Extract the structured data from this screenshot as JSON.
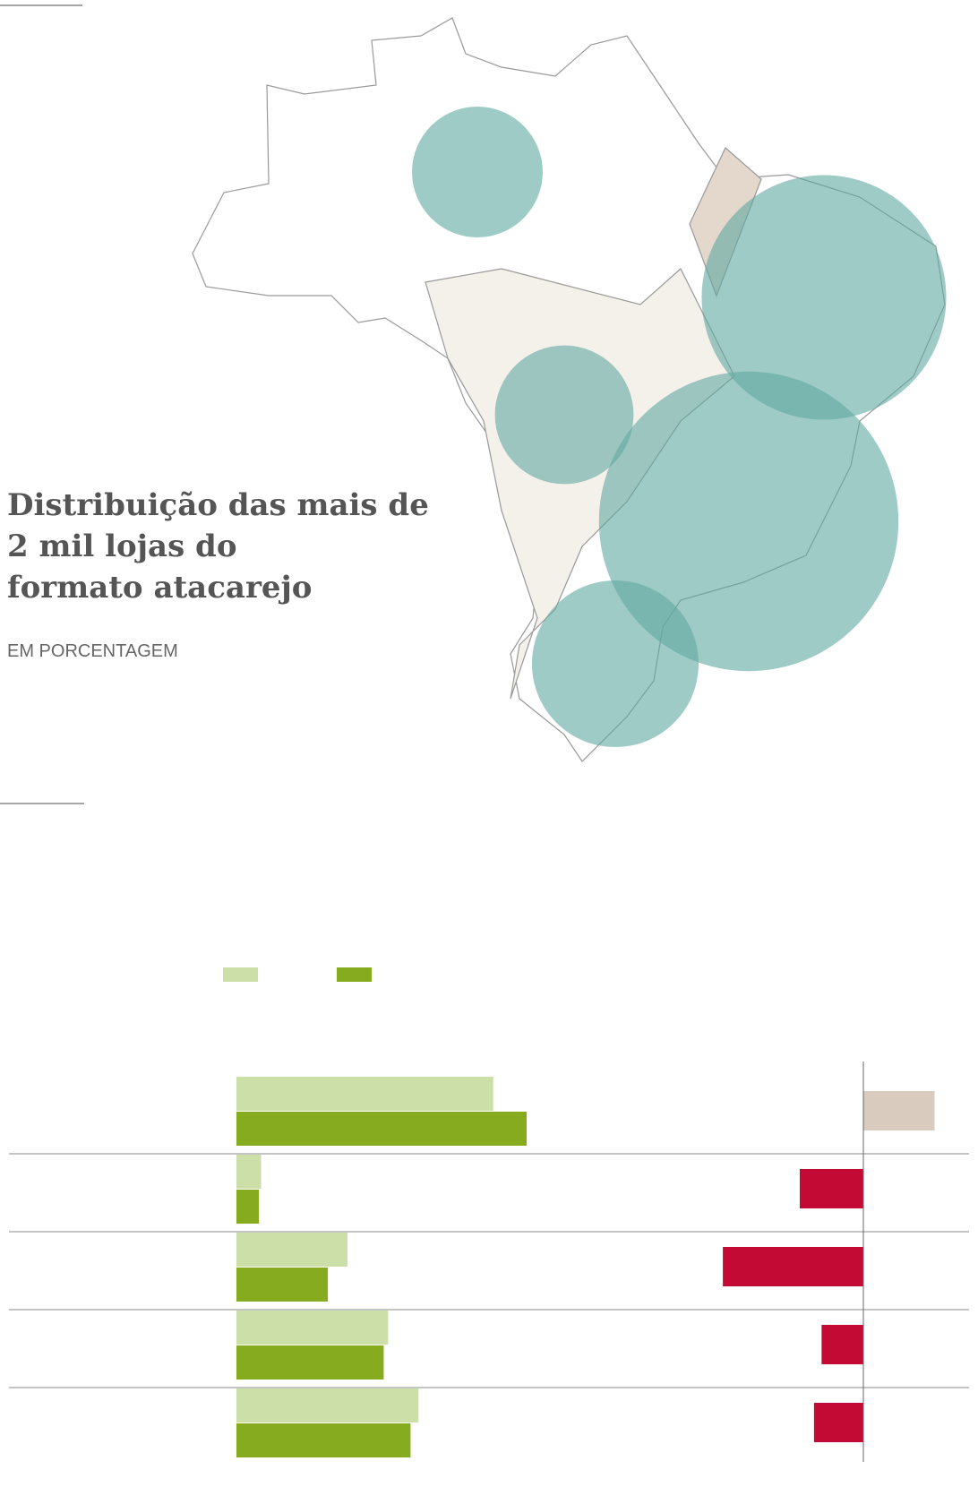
{
  "chart_data": [
    {
      "type": "bubble-map",
      "title": "Distribuição das mais de 2 mil lojas do formato atacarejo",
      "subtitle": "EM PORCENTAGEM",
      "values": [
        8,
        28,
        9,
        42,
        13
      ],
      "color": "#5fa8a0"
    },
    {
      "type": "bar",
      "xlim": [
        0,
        50
      ],
      "series": [
        {
          "color": "#cddfa8",
          "values": [
            35.4,
            3.4,
            15.3,
            20.9,
            25.1
          ]
        },
        {
          "color": "#86ab1e",
          "values": [
            40,
            3.1,
            12.6,
            20.3,
            24
          ]
        }
      ]
    },
    {
      "type": "diverging-bar",
      "xlim": [
        -20,
        10
      ],
      "values": [
        7.5,
        -6.7,
        -14.8,
        -4.4,
        -5.2
      ],
      "positive_color": "#d9cbbd",
      "negative_color": "#c20a35"
    }
  ]
}
